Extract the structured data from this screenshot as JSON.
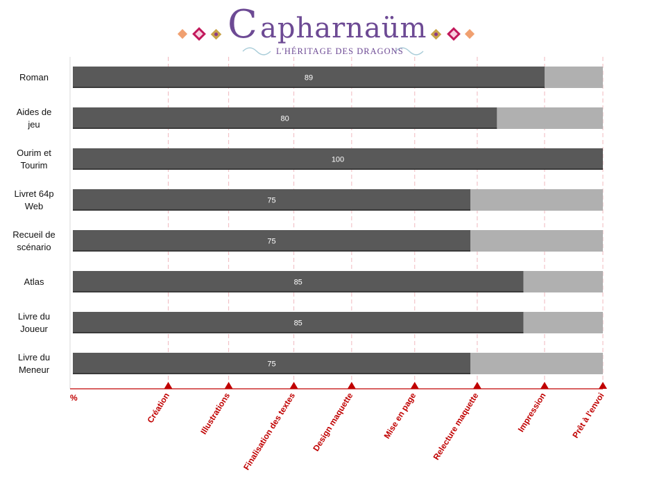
{
  "logo": {
    "title_initial": "C",
    "title_rest": "apharnaüm",
    "subtitle": "L'HÉRITAGE DES DRAGONS"
  },
  "colors": {
    "done": "#595959",
    "remaining": "#b0b0b0",
    "accent": "#c00000",
    "milestone_line": "#f0b8be",
    "logo": "#6d4a94"
  },
  "chart_data": {
    "type": "bar",
    "orientation": "horizontal",
    "stacked": true,
    "categories": [
      [
        "Roman"
      ],
      [
        "Aides de",
        "jeu"
      ],
      [
        "Ourim  et",
        "Tourim"
      ],
      [
        "Livret 64p",
        "Web"
      ],
      [
        "Recueil de",
        "scénario"
      ],
      [
        "Atlas"
      ],
      [
        "Livre du",
        "Joueur"
      ],
      [
        "Livre du",
        "Meneur"
      ]
    ],
    "values": [
      89,
      80,
      100,
      75,
      75,
      85,
      85,
      75
    ],
    "remaining": [
      11,
      20,
      0,
      25,
      25,
      15,
      15,
      25
    ],
    "xlim": [
      0,
      100
    ],
    "xlabel": "%",
    "stages": [
      {
        "label": "Création",
        "value": 18
      },
      {
        "label": "Illustrations",
        "value": 29.4
      },
      {
        "label": "Finalisation des textes",
        "value": 41.7
      },
      {
        "label": "Design maquette",
        "value": 52.6
      },
      {
        "label": "Mise en page",
        "value": 64.5
      },
      {
        "label": "Relecture maquette",
        "value": 76.3
      },
      {
        "label": "Impression",
        "value": 89
      },
      {
        "label": "Prêt à l'envoi",
        "value": 100
      }
    ],
    "legend": "none",
    "grid": false
  }
}
